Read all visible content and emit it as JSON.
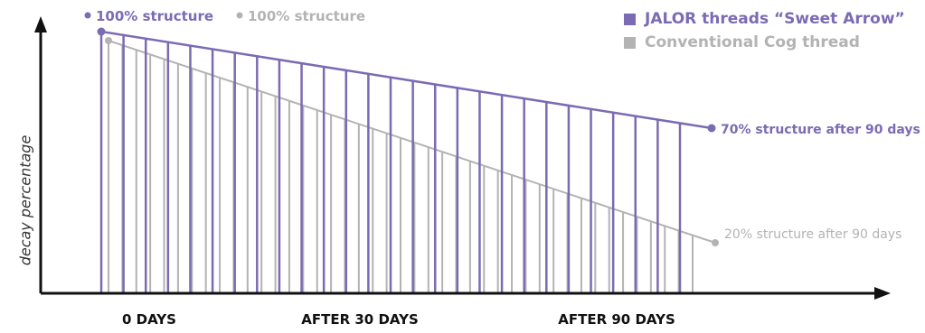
{
  "chart_data": {
    "type": "line",
    "ylabel": "decay percentage",
    "x_tick_labels": [
      "0 DAYS",
      "AFTER 30 DAYS",
      "AFTER 90 DAYS"
    ],
    "x": [
      0,
      90
    ],
    "ylim": [
      0,
      100
    ],
    "series": [
      {
        "name": "JALOR threads “Sweet Arrow”",
        "color": "#7b6bb3",
        "values": [
          100,
          70
        ],
        "start_label": "100% structure",
        "end_label": "70% structure after 90 days"
      },
      {
        "name": "Conventional Cog thread",
        "color": "#b3b3b3",
        "values": [
          100,
          20
        ],
        "start_label": "100% structure",
        "end_label": "20% structure after 90 days"
      }
    ]
  }
}
